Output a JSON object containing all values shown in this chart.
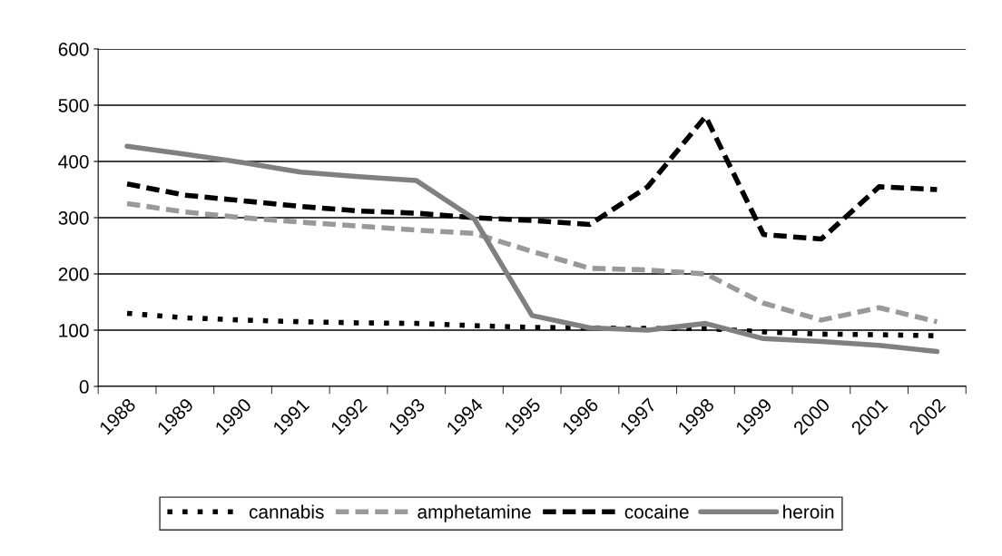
{
  "chart_data": {
    "type": "line",
    "categories": [
      "1988",
      "1989",
      "1990",
      "1991",
      "1992",
      "1993",
      "1994",
      "1995",
      "1996",
      "1997",
      "1998",
      "1999",
      "2000",
      "2001",
      "2002"
    ],
    "series": [
      {
        "name": "cannabis",
        "color": "#000000",
        "line_style": "dotted",
        "values": [
          130,
          122,
          118,
          115,
          113,
          112,
          108,
          105,
          104,
          103,
          103,
          97,
          93,
          92,
          90
        ]
      },
      {
        "name": "amphetamine",
        "color": "#999999",
        "line_style": "dashed",
        "values": [
          325,
          310,
          300,
          292,
          285,
          278,
          272,
          240,
          210,
          207,
          200,
          148,
          118,
          140,
          115
        ]
      },
      {
        "name": "cocaine",
        "color": "#000000",
        "line_style": "dashed",
        "values": [
          360,
          340,
          330,
          320,
          312,
          308,
          300,
          295,
          288,
          355,
          480,
          270,
          262,
          355,
          350
        ]
      },
      {
        "name": "heroin",
        "color": "#808080",
        "line_style": "solid",
        "values": [
          427,
          413,
          398,
          381,
          373,
          366,
          298,
          126,
          104,
          100,
          112,
          85,
          80,
          73,
          62
        ]
      }
    ],
    "ylim": [
      0,
      600
    ],
    "yticks": [
      0,
      100,
      200,
      300,
      400,
      500,
      600
    ],
    "grid": "y",
    "legend": "bottom",
    "marker": "none"
  }
}
